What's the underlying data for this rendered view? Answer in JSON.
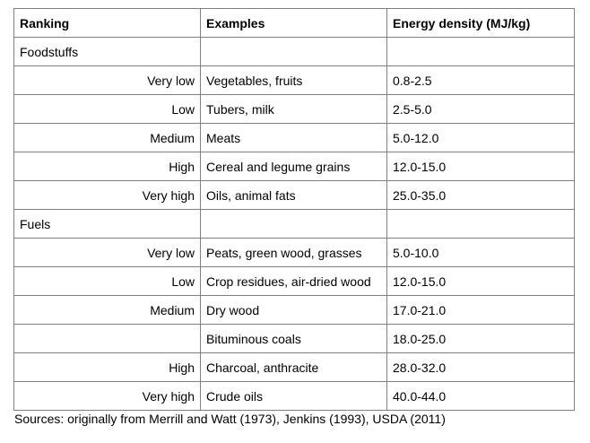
{
  "table": {
    "headers": [
      "Ranking",
      "Examples",
      "Energy density (MJ/kg)"
    ],
    "sections": [
      {
        "title": "Foodstuffs",
        "rows": [
          {
            "ranking": "Very low",
            "examples": "Vegetables, fruits",
            "density": "0.8-2.5"
          },
          {
            "ranking": "Low",
            "examples": "Tubers, milk",
            "density": "2.5-5.0"
          },
          {
            "ranking": "Medium",
            "examples": "Meats",
            "density": "5.0-12.0"
          },
          {
            "ranking": "High",
            "examples": "Cereal and legume grains",
            "density": "12.0-15.0"
          },
          {
            "ranking": "Very high",
            "examples": "Oils, animal fats",
            "density": "25.0-35.0"
          }
        ]
      },
      {
        "title": "Fuels",
        "rows": [
          {
            "ranking": "Very low",
            "examples": "Peats, green wood, grasses",
            "density": "5.0-10.0"
          },
          {
            "ranking": "Low",
            "examples": "Crop residues, air-dried wood",
            "density": "12.0-15.0"
          },
          {
            "ranking": "Medium",
            "examples": "Dry wood",
            "density": "17.0-21.0"
          },
          {
            "ranking": "",
            "examples": "Bituminous coals",
            "density": "18.0-25.0"
          },
          {
            "ranking": "High",
            "examples": "Charcoal, anthracite",
            "density": "28.0-32.0"
          },
          {
            "ranking": "Very high",
            "examples": "Crude oils",
            "density": "40.0-44.0"
          }
        ]
      }
    ]
  },
  "caption": "Sources: originally from Merrill and Watt (1973), Jenkins (1993), USDA (2011)"
}
